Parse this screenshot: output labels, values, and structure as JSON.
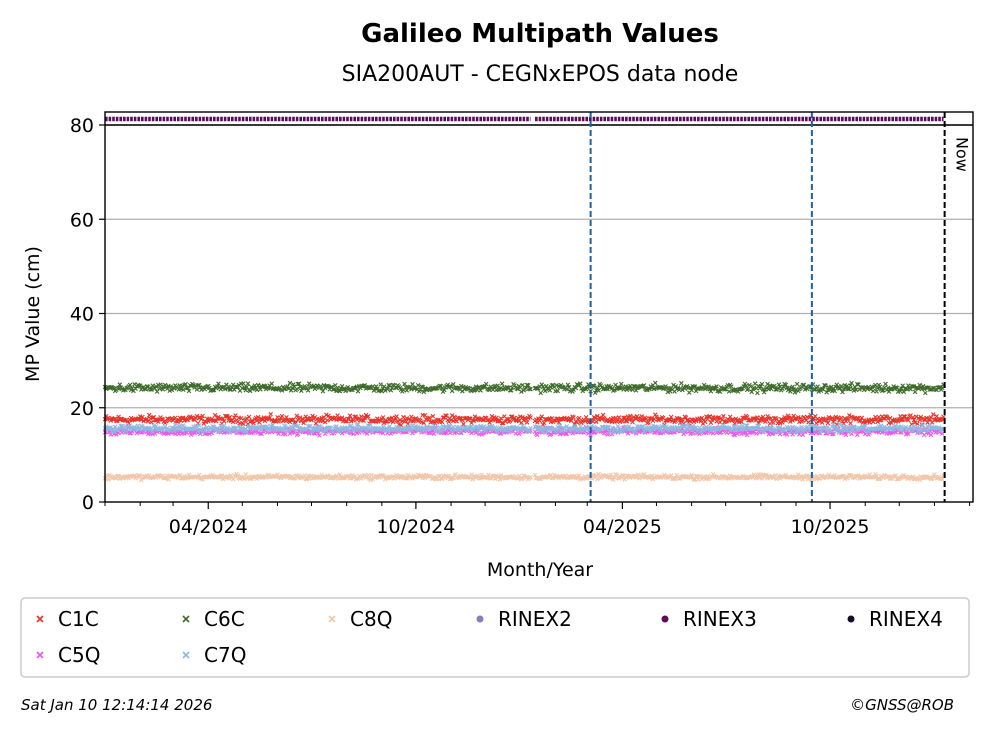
{
  "chart_data": {
    "type": "scatter",
    "title": "Galileo Multipath Values",
    "subtitle": "SIA200AUT - CEGNxEPOS data node",
    "xlabel": "Month/Year",
    "ylabel": "MP Value (cm)",
    "xlim": [
      "2024-01-01",
      "2026-02-04"
    ],
    "ylim": [
      0,
      80
    ],
    "yticks": [
      0,
      20,
      40,
      60,
      80
    ],
    "xticks": [
      {
        "date": "2024-04-01",
        "label": "04/2024"
      },
      {
        "date": "2024-10-01",
        "label": "10/2024"
      },
      {
        "date": "2025-04-01",
        "label": "04/2025"
      },
      {
        "date": "2025-10-01",
        "label": "10/2025"
      }
    ],
    "minor_xticks": [
      "2024-01-01",
      "2024-02-01",
      "2024-03-01",
      "2024-05-01",
      "2024-06-01",
      "2024-07-01",
      "2024-08-01",
      "2024-09-01",
      "2024-11-01",
      "2024-12-01",
      "2025-01-01",
      "2025-02-01",
      "2025-03-01",
      "2025-05-01",
      "2025-06-01",
      "2025-07-01",
      "2025-08-01",
      "2025-09-01",
      "2025-11-01",
      "2025-12-01",
      "2026-01-01",
      "2026-02-01"
    ],
    "grid": "horizontal",
    "data_start": "2024-01-01",
    "data_end": "2026-01-09",
    "gap": [
      "2025-01-10",
      "2025-01-14"
    ],
    "events": [
      {
        "date": "2025-03-04",
        "color": "#1f5fa6",
        "style": "dashed"
      },
      {
        "date": "2025-09-15",
        "color": "#1f5fa6",
        "style": "dashed"
      }
    ],
    "now": {
      "date": "2026-01-10",
      "label": "Now"
    },
    "rinex_band": {
      "series": "RINEX3",
      "color": "#5b0a5c",
      "start": "2024-01-01",
      "end": "2026-01-09"
    },
    "series": [
      {
        "name": "C1C",
        "color": "#e8342a",
        "marker": "x",
        "mean": 17.5,
        "spread": 0.6
      },
      {
        "name": "C6C",
        "color": "#3d6b2a",
        "marker": "x",
        "mean": 24.2,
        "spread": 0.6
      },
      {
        "name": "C8Q",
        "color": "#f2c6a8",
        "marker": "x",
        "mean": 5.3,
        "spread": 0.35
      },
      {
        "name": "C5Q",
        "color": "#ee55ee",
        "marker": "x",
        "mean": 15.0,
        "spread": 0.5
      },
      {
        "name": "C7Q",
        "color": "#8fb8de",
        "marker": "x",
        "mean": 15.6,
        "spread": 0.5
      }
    ],
    "legend": {
      "placement": "bottom",
      "entries": [
        {
          "label": "C1C",
          "color": "#e8342a",
          "marker": "x"
        },
        {
          "label": "C6C",
          "color": "#3d6b2a",
          "marker": "x"
        },
        {
          "label": "C8Q",
          "color": "#f2c6a8",
          "marker": "x"
        },
        {
          "label": "RINEX2",
          "color": "#8a7cc2",
          "marker": "dot"
        },
        {
          "label": "RINEX3",
          "color": "#5b0a5c",
          "marker": "dot"
        },
        {
          "label": "RINEX4",
          "color": "#1a0a2a",
          "marker": "dot"
        },
        {
          "label": "C5Q",
          "color": "#ee55ee",
          "marker": "x"
        },
        {
          "label": "C7Q",
          "color": "#8fb8de",
          "marker": "x"
        }
      ]
    }
  },
  "footer": {
    "timestamp": "Sat Jan 10 12:14:14 2026",
    "copyright": "©GNSS@ROB"
  }
}
